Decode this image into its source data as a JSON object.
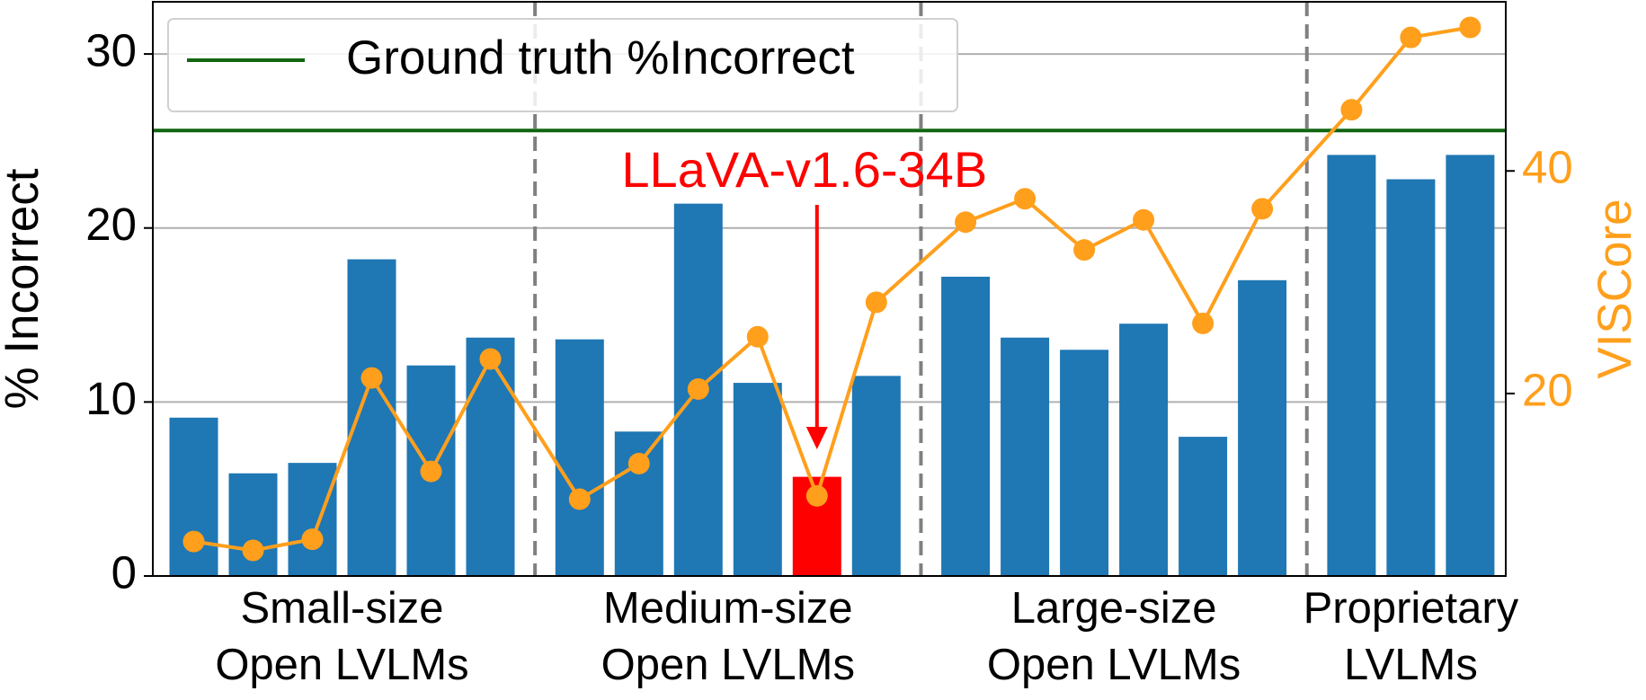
{
  "chart_data": {
    "type": "bar-line",
    "ylabel": "% Incorrect",
    "y2label": "VISCore",
    "ylim": [
      0,
      33
    ],
    "yticks": [
      0,
      10,
      20,
      30
    ],
    "y2lim": [
      3.6,
      55.2
    ],
    "y2ticks": [
      20,
      40
    ],
    "y2color": "#ff9f1c",
    "grid": true,
    "legend": "upper left",
    "categories": [
      null,
      null,
      null,
      null,
      null,
      null,
      null,
      null,
      null,
      null,
      null,
      null,
      null,
      null,
      null,
      null,
      null,
      null,
      null,
      null,
      null
    ],
    "groups": [
      {
        "label": [
          "Small-size",
          "Open LVLMs"
        ],
        "size": 6
      },
      {
        "label": [
          "Medium-size",
          "Open LVLMs"
        ],
        "size": 6
      },
      {
        "label": [
          "Large-size",
          "Open LVLMs"
        ],
        "size": 6
      },
      {
        "label": [
          "Proprietary",
          "LVLMs"
        ],
        "size": 3
      }
    ],
    "series": [
      {
        "type": "bar",
        "color": "#1f77b4",
        "values": [
          9.1,
          5.9,
          6.5,
          18.2,
          12.1,
          13.7,
          13.6,
          8.3,
          21.4,
          11.1,
          5.7,
          11.5,
          17.2,
          13.7,
          13.0,
          14.5,
          8.0,
          17.0,
          24.2,
          22.8,
          24.2
        ]
      },
      {
        "type": "line",
        "axis": "y2",
        "color": "#ff9f1c",
        "values": [
          6.7,
          5.9,
          6.9,
          21.4,
          13.0,
          23.1,
          10.5,
          13.7,
          20.4,
          25.1,
          10.8,
          28.2,
          35.4,
          37.5,
          32.9,
          35.6,
          26.3,
          36.6,
          45.5,
          52.0,
          52.9
        ]
      }
    ],
    "reference_line": {
      "name": "Ground truth %Incorrect",
      "value": 25.6,
      "color": "#116611"
    },
    "highlight": {
      "index": 10,
      "color": "#ff0000",
      "text": "LLaVA-v1.6-34B"
    }
  }
}
